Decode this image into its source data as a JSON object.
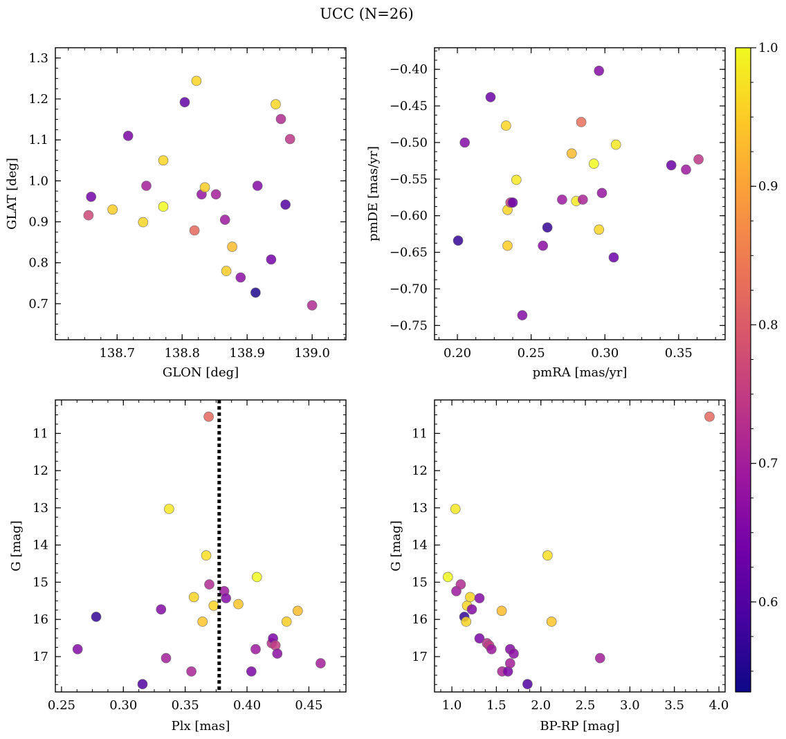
{
  "figure": {
    "title": "UCC (N=26)"
  },
  "chart_data": [
    {
      "type": "scatter",
      "xlabel": "GLON [deg]",
      "ylabel": "GLAT [deg]",
      "xlim": [
        138.605,
        139.052
      ],
      "ylim": [
        0.612,
        1.325
      ],
      "x_ticks": [
        138.7,
        138.8,
        138.9,
        139.0
      ],
      "x_tick_labels": [
        "138.7",
        "138.8",
        "138.9",
        "139.0"
      ],
      "y_ticks": [
        0.7,
        0.8,
        0.9,
        1.0,
        1.1,
        1.2,
        1.3
      ],
      "y_tick_labels": [
        "0.7",
        "0.8",
        "0.9",
        "1.0",
        "1.1",
        "1.2",
        "1.3"
      ],
      "y_inverted": false,
      "points": [
        {
          "x": 138.656,
          "y": 0.916,
          "c": 0.77
        },
        {
          "x": 138.66,
          "y": 0.961,
          "c": 0.64
        },
        {
          "x": 138.693,
          "y": 0.93,
          "c": 0.95
        },
        {
          "x": 138.717,
          "y": 1.11,
          "c": 0.65
        },
        {
          "x": 138.74,
          "y": 0.899,
          "c": 0.96
        },
        {
          "x": 138.745,
          "y": 0.988,
          "c": 0.7
        },
        {
          "x": 138.771,
          "y": 1.05,
          "c": 0.96
        },
        {
          "x": 138.771,
          "y": 0.937,
          "c": 1.0
        },
        {
          "x": 138.804,
          "y": 1.192,
          "c": 0.62
        },
        {
          "x": 138.819,
          "y": 0.879,
          "c": 0.82
        },
        {
          "x": 138.822,
          "y": 1.244,
          "c": 0.96
        },
        {
          "x": 138.83,
          "y": 0.967,
          "c": 0.68
        },
        {
          "x": 138.835,
          "y": 0.984,
          "c": 0.95
        },
        {
          "x": 138.852,
          "y": 0.967,
          "c": 0.7
        },
        {
          "x": 138.866,
          "y": 0.905,
          "c": 0.69
        },
        {
          "x": 138.868,
          "y": 0.78,
          "c": 0.95
        },
        {
          "x": 138.877,
          "y": 0.839,
          "c": 0.93
        },
        {
          "x": 138.89,
          "y": 0.764,
          "c": 0.67
        },
        {
          "x": 138.913,
          "y": 0.727,
          "c": 0.55
        },
        {
          "x": 138.916,
          "y": 0.988,
          "c": 0.66
        },
        {
          "x": 138.937,
          "y": 0.808,
          "c": 0.64
        },
        {
          "x": 138.944,
          "y": 1.187,
          "c": 0.96
        },
        {
          "x": 138.952,
          "y": 1.151,
          "c": 0.72
        },
        {
          "x": 138.959,
          "y": 0.942,
          "c": 0.6
        },
        {
          "x": 138.966,
          "y": 1.102,
          "c": 0.74
        },
        {
          "x": 139.0,
          "y": 0.696,
          "c": 0.72
        }
      ]
    },
    {
      "type": "scatter",
      "xlabel": "pmRA [mas/yr]",
      "ylabel": "pmDE [mas/yr]",
      "xlim": [
        0.1845,
        0.3815
      ],
      "ylim": [
        -0.7695,
        -0.3705
      ],
      "x_ticks": [
        0.2,
        0.25,
        0.3,
        0.35
      ],
      "x_tick_labels": [
        "0.20",
        "0.25",
        "0.30",
        "0.35"
      ],
      "y_ticks": [
        -0.75,
        -0.7,
        -0.65,
        -0.6,
        -0.55,
        -0.5,
        -0.45,
        -0.4
      ],
      "y_tick_labels": [
        "−0.75",
        "−0.70",
        "−0.65",
        "−0.60",
        "−0.55",
        "−0.50",
        "−0.45",
        "−0.40"
      ],
      "y_inverted": false,
      "points": [
        {
          "x": 0.2005,
          "y": -0.634,
          "c": 0.57
        },
        {
          "x": 0.205,
          "y": -0.5,
          "c": 0.66
        },
        {
          "x": 0.2225,
          "y": -0.438,
          "c": 0.63
        },
        {
          "x": 0.233,
          "y": -0.477,
          "c": 0.96
        },
        {
          "x": 0.234,
          "y": -0.592,
          "c": 0.96
        },
        {
          "x": 0.234,
          "y": -0.641,
          "c": 0.95
        },
        {
          "x": 0.236,
          "y": -0.582,
          "c": 0.75
        },
        {
          "x": 0.2375,
          "y": -0.582,
          "c": 0.63
        },
        {
          "x": 0.24,
          "y": -0.551,
          "c": 0.98
        },
        {
          "x": 0.244,
          "y": -0.736,
          "c": 0.66
        },
        {
          "x": 0.258,
          "y": -0.641,
          "c": 0.67
        },
        {
          "x": 0.261,
          "y": -0.616,
          "c": 0.57
        },
        {
          "x": 0.271,
          "y": -0.578,
          "c": 0.69
        },
        {
          "x": 0.2775,
          "y": -0.515,
          "c": 0.93
        },
        {
          "x": 0.2805,
          "y": -0.58,
          "c": 0.98
        },
        {
          "x": 0.284,
          "y": -0.472,
          "c": 0.83
        },
        {
          "x": 0.285,
          "y": -0.578,
          "c": 0.71
        },
        {
          "x": 0.2925,
          "y": -0.529,
          "c": 1.0
        },
        {
          "x": 0.296,
          "y": -0.402,
          "c": 0.66
        },
        {
          "x": 0.296,
          "y": -0.619,
          "c": 0.96
        },
        {
          "x": 0.298,
          "y": -0.569,
          "c": 0.68
        },
        {
          "x": 0.306,
          "y": -0.657,
          "c": 0.63
        },
        {
          "x": 0.3075,
          "y": -0.503,
          "c": 0.98
        },
        {
          "x": 0.345,
          "y": -0.531,
          "c": 0.63
        },
        {
          "x": 0.355,
          "y": -0.537,
          "c": 0.69
        },
        {
          "x": 0.3635,
          "y": -0.523,
          "c": 0.74
        }
      ]
    },
    {
      "type": "scatter",
      "xlabel": "Plx [mas]",
      "ylabel": "G [mag]",
      "xlim": [
        0.245,
        0.48
      ],
      "ylim": [
        10.1,
        17.95
      ],
      "x_ticks": [
        0.25,
        0.3,
        0.35,
        0.4,
        0.45
      ],
      "x_tick_labels": [
        "0.25",
        "0.30",
        "0.35",
        "0.40",
        "0.45"
      ],
      "y_ticks": [
        11,
        12,
        13,
        14,
        15,
        16,
        17
      ],
      "y_tick_labels": [
        "11",
        "12",
        "13",
        "14",
        "15",
        "16",
        "17"
      ],
      "y_inverted": true,
      "vline": {
        "x": 0.3775,
        "style": "dotted",
        "color": "#000000"
      },
      "points": [
        {
          "x": 0.263,
          "y": 16.8,
          "c": 0.66
        },
        {
          "x": 0.278,
          "y": 15.93,
          "c": 0.57
        },
        {
          "x": 0.3155,
          "y": 17.74,
          "c": 0.6
        },
        {
          "x": 0.3305,
          "y": 15.73,
          "c": 0.66
        },
        {
          "x": 0.3345,
          "y": 17.04,
          "c": 0.7
        },
        {
          "x": 0.337,
          "y": 13.03,
          "c": 0.98
        },
        {
          "x": 0.355,
          "y": 17.4,
          "c": 0.71
        },
        {
          "x": 0.357,
          "y": 15.4,
          "c": 0.96
        },
        {
          "x": 0.364,
          "y": 16.06,
          "c": 0.94
        },
        {
          "x": 0.367,
          "y": 14.28,
          "c": 0.97
        },
        {
          "x": 0.369,
          "y": 10.55,
          "c": 0.82
        },
        {
          "x": 0.3695,
          "y": 15.06,
          "c": 0.72
        },
        {
          "x": 0.373,
          "y": 15.63,
          "c": 0.96
        },
        {
          "x": 0.3815,
          "y": 15.24,
          "c": 0.69
        },
        {
          "x": 0.383,
          "y": 15.43,
          "c": 0.66
        },
        {
          "x": 0.393,
          "y": 15.59,
          "c": 0.94
        },
        {
          "x": 0.4035,
          "y": 17.4,
          "c": 0.65
        },
        {
          "x": 0.407,
          "y": 16.8,
          "c": 0.69
        },
        {
          "x": 0.408,
          "y": 14.86,
          "c": 1.0
        },
        {
          "x": 0.42,
          "y": 16.64,
          "c": 0.73
        },
        {
          "x": 0.421,
          "y": 16.51,
          "c": 0.65
        },
        {
          "x": 0.423,
          "y": 16.7,
          "c": 0.75
        },
        {
          "x": 0.4245,
          "y": 16.92,
          "c": 0.67
        },
        {
          "x": 0.432,
          "y": 16.06,
          "c": 0.95
        },
        {
          "x": 0.441,
          "y": 15.77,
          "c": 0.93
        },
        {
          "x": 0.4595,
          "y": 17.18,
          "c": 0.7
        }
      ]
    },
    {
      "type": "scatter",
      "xlabel": "BP-RP [mag]",
      "ylabel": "G [mag]",
      "xlim": [
        0.805,
        4.07
      ],
      "ylim": [
        10.1,
        17.95
      ],
      "x_ticks": [
        1.0,
        1.5,
        2.0,
        2.5,
        3.0,
        3.5,
        4.0
      ],
      "x_tick_labels": [
        "1.0",
        "1.5",
        "2.0",
        "2.5",
        "3.0",
        "3.5",
        "4.0"
      ],
      "y_ticks": [
        11,
        12,
        13,
        14,
        15,
        16,
        17
      ],
      "y_tick_labels": [
        "11",
        "12",
        "13",
        "14",
        "15",
        "16",
        "17"
      ],
      "y_inverted": true,
      "points": [
        {
          "x": 0.955,
          "y": 14.86,
          "c": 1.0
        },
        {
          "x": 1.04,
          "y": 13.03,
          "c": 0.98
        },
        {
          "x": 1.05,
          "y": 15.24,
          "c": 0.69
        },
        {
          "x": 1.1,
          "y": 15.06,
          "c": 0.72
        },
        {
          "x": 1.14,
          "y": 15.93,
          "c": 0.57
        },
        {
          "x": 1.16,
          "y": 16.06,
          "c": 0.96
        },
        {
          "x": 1.17,
          "y": 15.63,
          "c": 0.96
        },
        {
          "x": 1.205,
          "y": 15.4,
          "c": 0.96
        },
        {
          "x": 1.225,
          "y": 15.73,
          "c": 0.66
        },
        {
          "x": 1.31,
          "y": 15.43,
          "c": 0.66
        },
        {
          "x": 1.31,
          "y": 16.51,
          "c": 0.65
        },
        {
          "x": 1.395,
          "y": 16.64,
          "c": 0.73
        },
        {
          "x": 1.42,
          "y": 16.7,
          "c": 0.75
        },
        {
          "x": 1.445,
          "y": 16.8,
          "c": 0.69
        },
        {
          "x": 1.56,
          "y": 15.77,
          "c": 0.93
        },
        {
          "x": 1.565,
          "y": 17.4,
          "c": 0.71
        },
        {
          "x": 1.63,
          "y": 17.4,
          "c": 0.65
        },
        {
          "x": 1.655,
          "y": 16.8,
          "c": 0.66
        },
        {
          "x": 1.655,
          "y": 17.18,
          "c": 0.7
        },
        {
          "x": 1.695,
          "y": 16.92,
          "c": 0.67
        },
        {
          "x": 1.85,
          "y": 17.74,
          "c": 0.6
        },
        {
          "x": 2.075,
          "y": 14.28,
          "c": 0.97
        },
        {
          "x": 2.12,
          "y": 16.06,
          "c": 0.94
        },
        {
          "x": 2.665,
          "y": 17.04,
          "c": 0.7
        },
        {
          "x": 3.895,
          "y": 10.55,
          "c": 0.82
        }
      ]
    }
  ],
  "colorbar": {
    "colormap": "plasma",
    "range": [
      0.535,
      1.0
    ],
    "ticks": [
      0.6,
      0.7,
      0.8,
      0.9,
      1.0
    ],
    "tick_labels": [
      "0.6",
      "0.7",
      "0.8",
      "0.9",
      "1.0"
    ]
  },
  "colors": {
    "point_edge": "#666666",
    "plasma_stops": [
      "#0d0887",
      "#46039f",
      "#7201a8",
      "#9c179e",
      "#bd3786",
      "#d8576b",
      "#ed7953",
      "#fb9f3a",
      "#fdca26",
      "#f0f921"
    ]
  }
}
